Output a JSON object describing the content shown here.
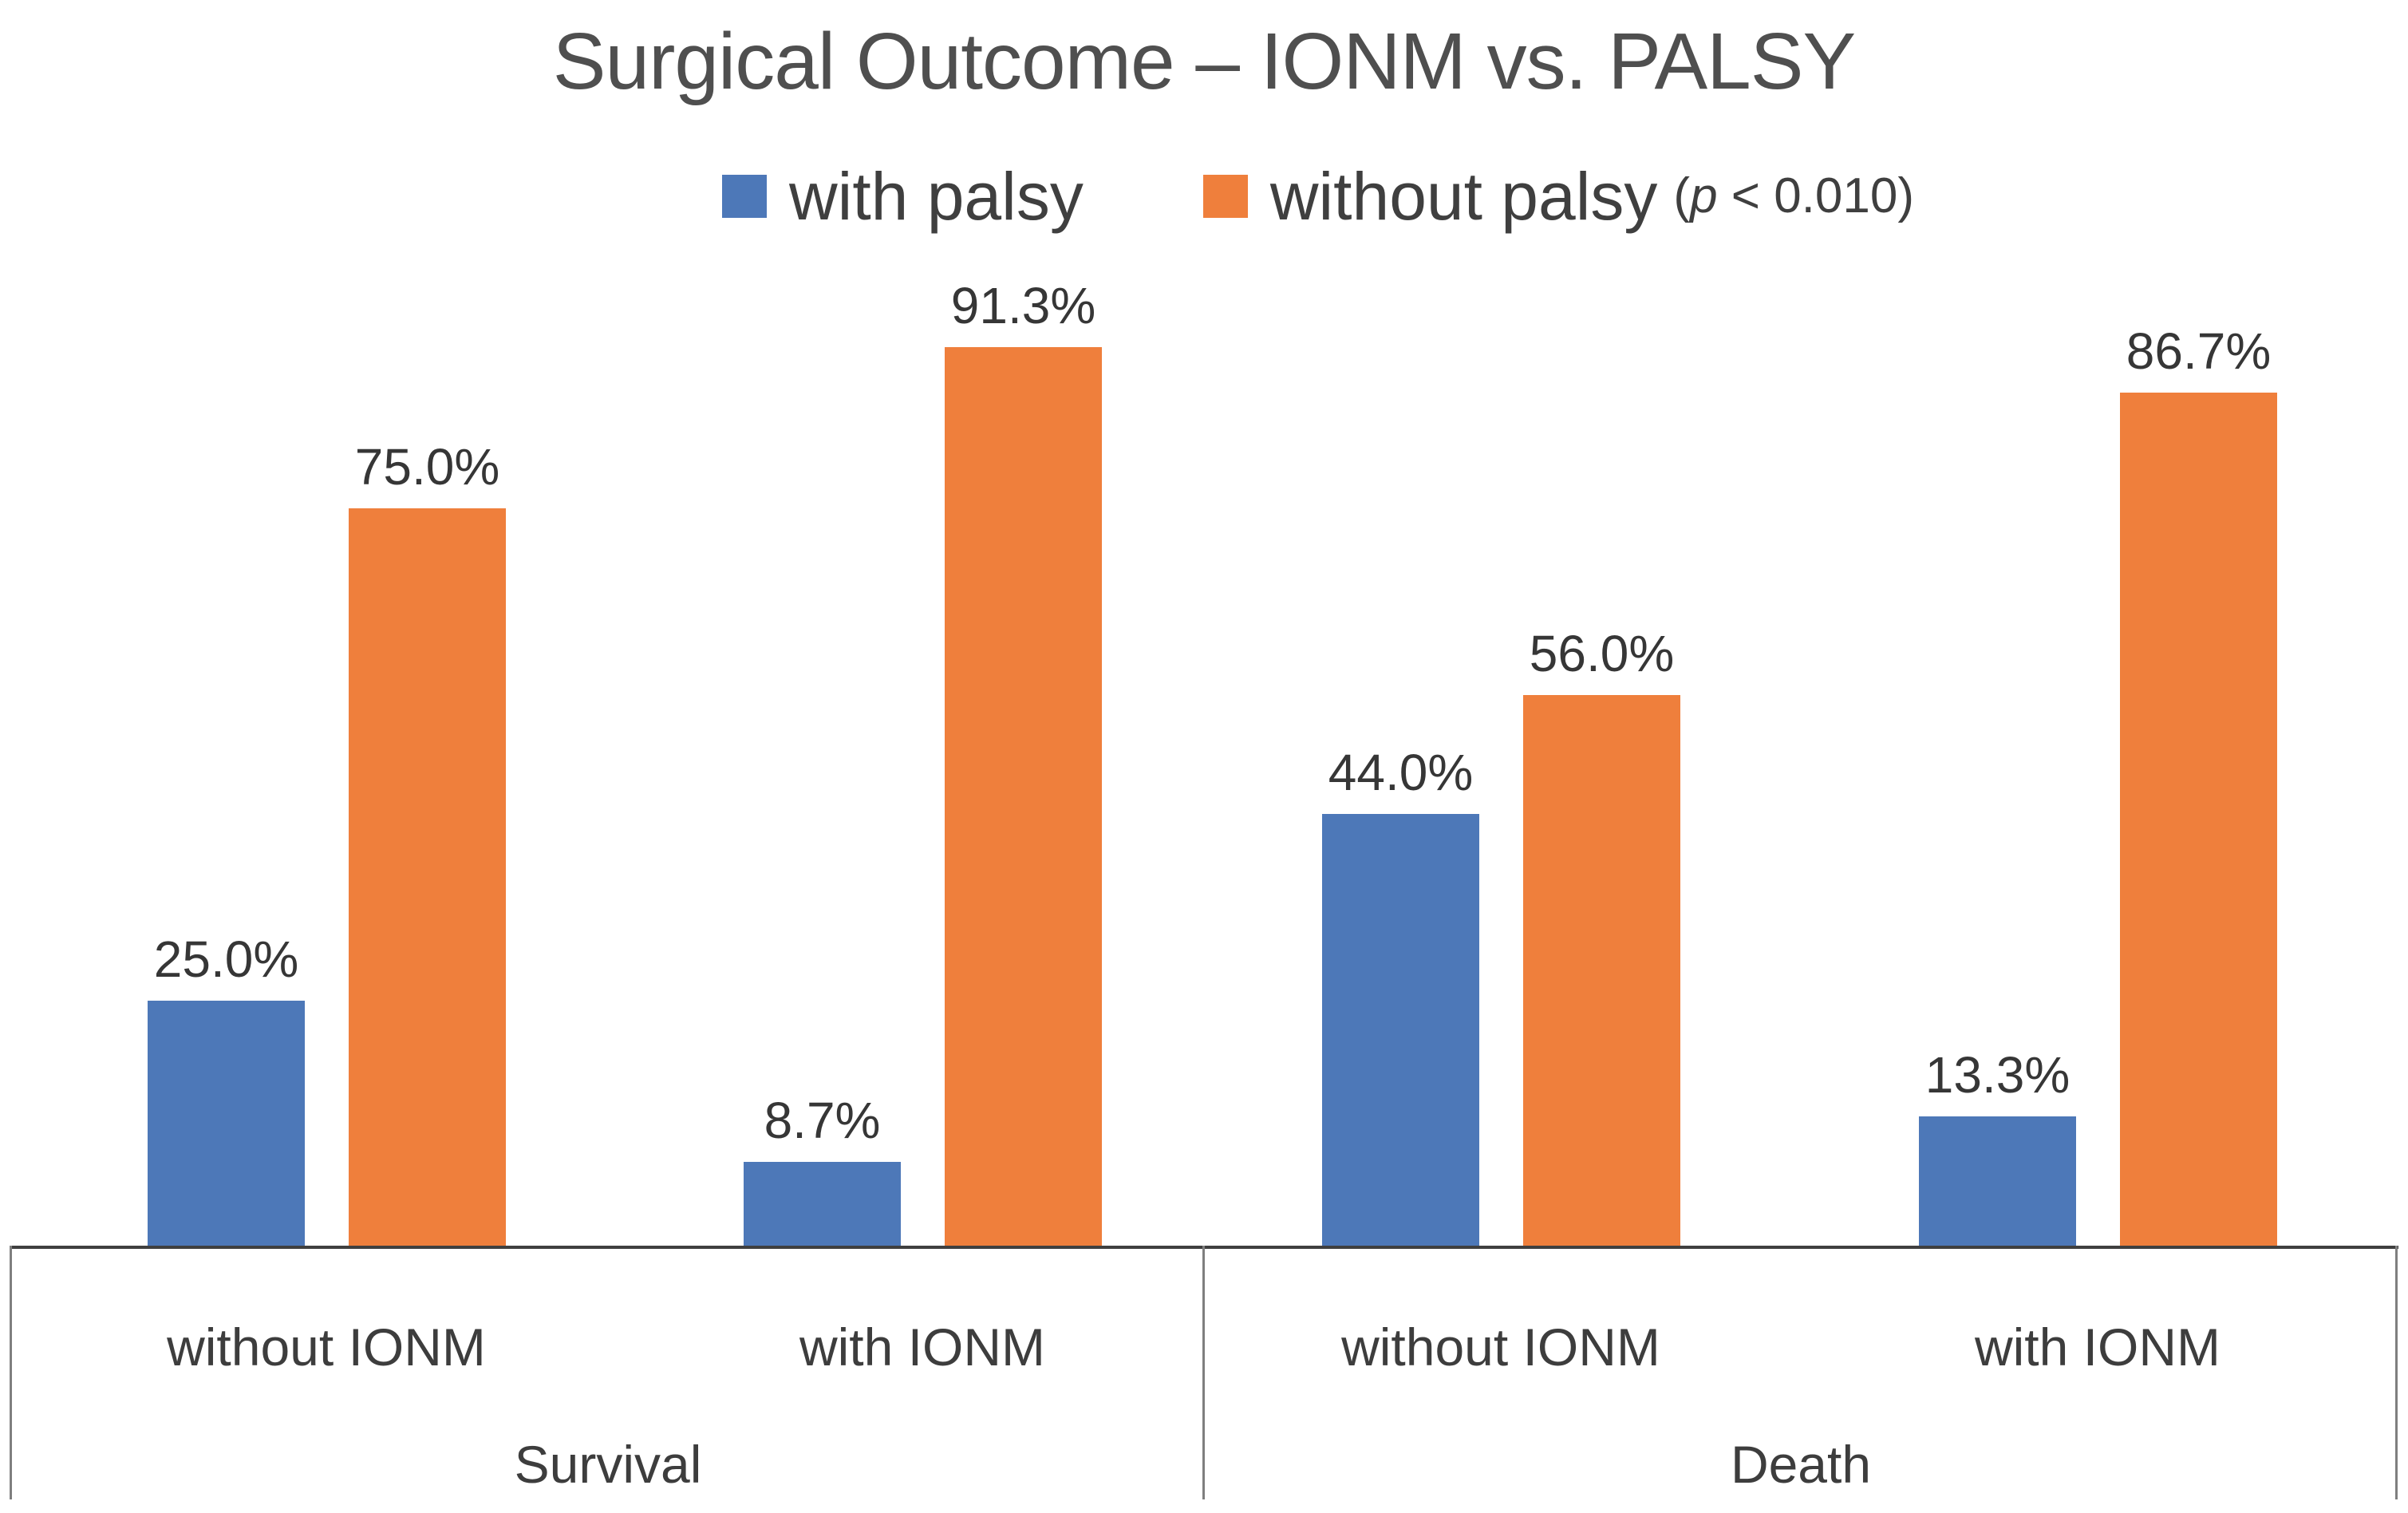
{
  "chart_data": {
    "type": "bar",
    "title": "Surgical Outcome – IONM vs. PALSY",
    "categories": [
      "Survival",
      "Death"
    ],
    "groups": [
      {
        "category": "Survival",
        "label": "without IONM"
      },
      {
        "category": "Survival",
        "label": "with IONM"
      },
      {
        "category": "Death",
        "label": "without IONM"
      },
      {
        "category": "Death",
        "label": "with IONM"
      }
    ],
    "series": [
      {
        "name": "with palsy",
        "color": "#4d78b8",
        "values": [
          25.0,
          8.7,
          44.0,
          13.3
        ],
        "labels": [
          "25.0%",
          "8.7%",
          "44.0%",
          "13.3%"
        ]
      },
      {
        "name": "without palsy",
        "color": "#ef7f3c",
        "values": [
          75.0,
          91.3,
          56.0,
          86.7
        ],
        "labels": [
          "75.0%",
          "91.3%",
          "56.0%",
          "86.7%"
        ]
      }
    ],
    "ylim": [
      0,
      100
    ],
    "grid": false,
    "legend_position": "top",
    "annotation": "(p < 0.010)"
  },
  "legend": {
    "items": [
      {
        "label": "with palsy",
        "color": "#4d78b8"
      },
      {
        "label": "without palsy",
        "color": "#ef7f3c"
      }
    ],
    "p_note": {
      "open": "(",
      "var": "p",
      "rest": " < 0.010)"
    }
  }
}
